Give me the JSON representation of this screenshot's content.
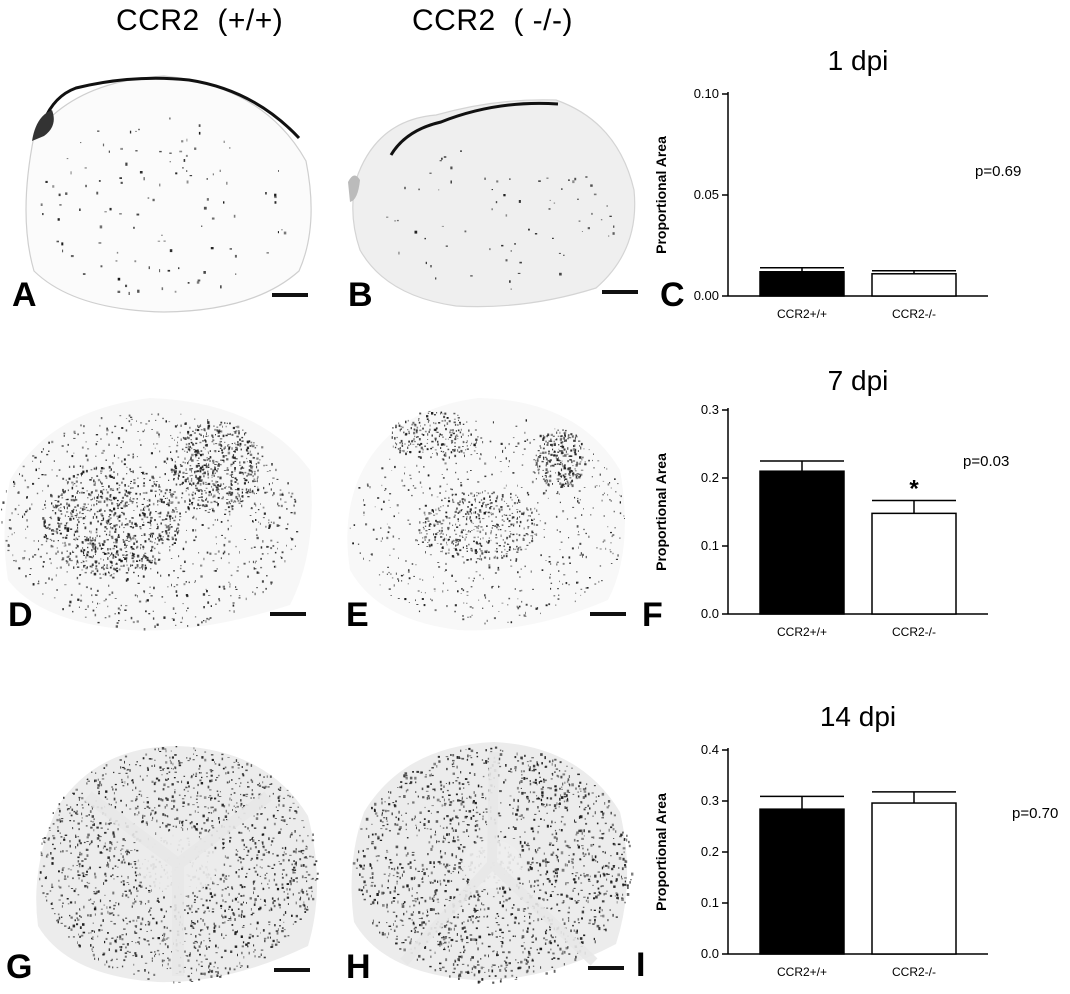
{
  "column_headers": [
    "CCR2  (+/+)",
    "CCR2  ( -/-)"
  ],
  "panel_letters": {
    "a": "A",
    "b": "B",
    "c": "C",
    "d": "D",
    "e": "E",
    "f": "F",
    "g": "G",
    "h": "H",
    "i": "I"
  },
  "colors": {
    "wildtype_bar": "#000000",
    "knockout_bar": "#ffffff",
    "axis": "#000000",
    "tissue_stain": "#1a1a1a"
  },
  "chart_data": [
    {
      "type": "bar",
      "title": "1 dpi",
      "ylabel": "Proportional Area",
      "xlabel": "",
      "categories": [
        "CCR2+/+",
        "CCR2-/-"
      ],
      "values": [
        0.012,
        0.011
      ],
      "errors": [
        0.002,
        0.0015
      ],
      "ylim": [
        0,
        0.1
      ],
      "yticks": [
        0,
        0.05,
        0.1
      ],
      "ytick_labels": [
        "0.00",
        "0.05",
        "0.10"
      ],
      "p_value_label": "p=0.69",
      "significance_marks": [
        "",
        ""
      ],
      "bar_fills": [
        "#000000",
        "#ffffff"
      ],
      "grid": false
    },
    {
      "type": "bar",
      "title": "7 dpi",
      "ylabel": "Proportional Area",
      "xlabel": "",
      "categories": [
        "CCR2+/+",
        "CCR2-/-"
      ],
      "values": [
        0.21,
        0.148
      ],
      "errors": [
        0.015,
        0.019
      ],
      "ylim": [
        0,
        0.3
      ],
      "yticks": [
        0,
        0.1,
        0.2,
        0.3
      ],
      "ytick_labels": [
        "0.0",
        "0.1",
        "0.2",
        "0.3"
      ],
      "p_value_label": "p=0.03",
      "significance_marks": [
        "",
        "*"
      ],
      "bar_fills": [
        "#000000",
        "#ffffff"
      ],
      "grid": false
    },
    {
      "type": "bar",
      "title": "14 dpi",
      "ylabel": "Proportional Area",
      "xlabel": "",
      "categories": [
        "CCR2+/+",
        "CCR2-/-"
      ],
      "values": [
        0.284,
        0.296
      ],
      "errors": [
        0.025,
        0.022
      ],
      "ylim": [
        0,
        0.4
      ],
      "yticks": [
        0,
        0.1,
        0.2,
        0.3,
        0.4
      ],
      "ytick_labels": [
        "0.0",
        "0.1",
        "0.2",
        "0.3",
        "0.4"
      ],
      "p_value_label": "p=0.70",
      "significance_marks": [
        "",
        ""
      ],
      "bar_fills": [
        "#000000",
        "#ffffff"
      ],
      "grid": false
    }
  ]
}
